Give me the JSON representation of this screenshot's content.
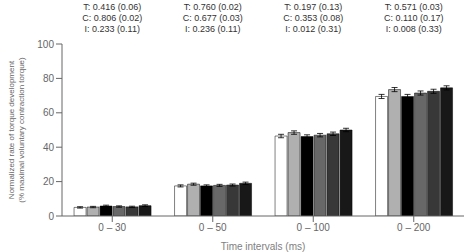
{
  "chart_data": {
    "type": "bar",
    "categories": [
      "0 – 30",
      "0 – 50",
      "0 – 100",
      "0 – 200"
    ],
    "series": [
      {
        "color": "#ffffff",
        "values": [
          5.0,
          17.5,
          46.5,
          69.5
        ],
        "errors": [
          0.4,
          0.6,
          1.0,
          1.2
        ]
      },
      {
        "color": "#b0b0b0",
        "values": [
          5.2,
          18.5,
          48.5,
          73.5
        ],
        "errors": [
          0.4,
          0.6,
          1.0,
          1.2
        ]
      },
      {
        "color": "#000000",
        "values": [
          5.8,
          17.5,
          46.2,
          69.5
        ],
        "errors": [
          0.5,
          0.6,
          1.0,
          1.2
        ]
      },
      {
        "color": "#686868",
        "values": [
          5.5,
          17.8,
          47.0,
          71.5
        ],
        "errors": [
          0.4,
          0.6,
          1.0,
          1.2
        ]
      },
      {
        "color": "#383838",
        "values": [
          5.3,
          18.0,
          47.8,
          72.5
        ],
        "errors": [
          0.4,
          0.6,
          1.0,
          1.2
        ]
      },
      {
        "color": "#181818",
        "values": [
          6.0,
          19.0,
          50.0,
          74.5
        ],
        "errors": [
          0.5,
          0.7,
          1.0,
          1.2
        ]
      }
    ],
    "annotations": [
      "T: 0.416 (0.06)\nC: 0.806 (0.02)\nI: 0.233 (0.11)",
      "T: 0.760 (0.02)\nC: 0.677 (0.03)\nI: 0.236 (0.11)",
      "T: 0.197 (0.13)\nC: 0.353 (0.08)\nI: 0.012 (0.31)",
      "T: 0.571 (0.03)\nC: 0.110 (0.17)\nI: 0.008 (0.33)"
    ],
    "ylabel": "Normalized rate of torque development\n(% maximal voluntary contraction torque)",
    "xlabel": "Time intervals (ms)",
    "ylim": [
      0,
      100
    ],
    "yticks": [
      0,
      20,
      40,
      60,
      80,
      100
    ],
    "grid": false
  }
}
